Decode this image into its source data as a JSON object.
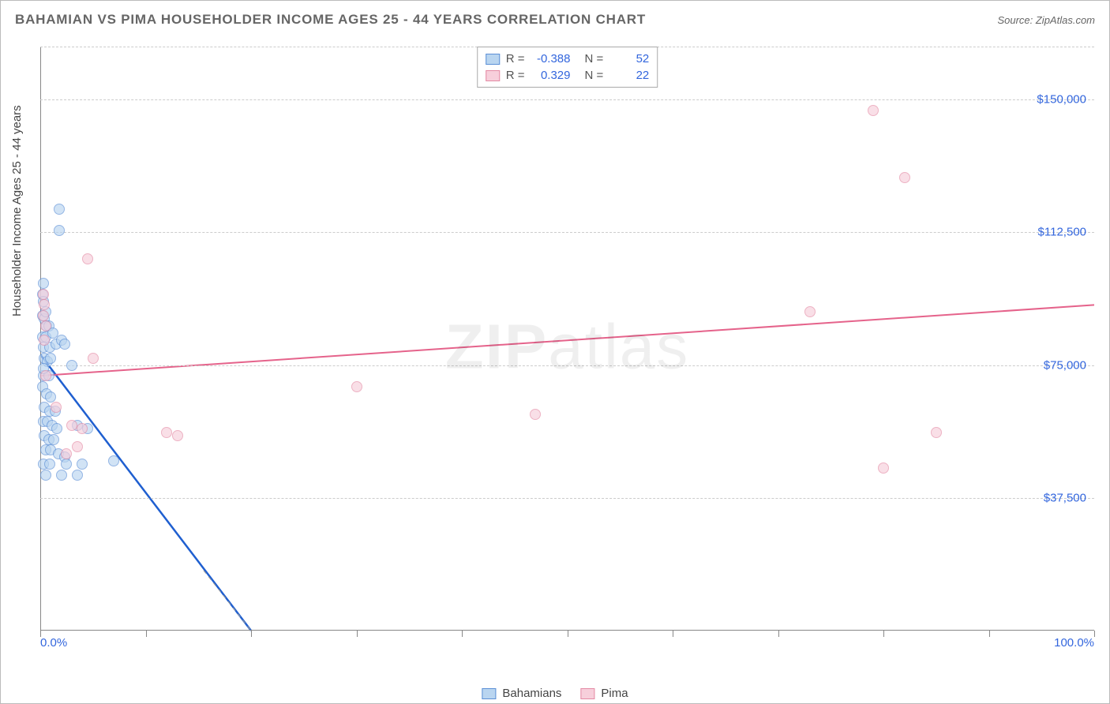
{
  "title": "BAHAMIAN VS PIMA HOUSEHOLDER INCOME AGES 25 - 44 YEARS CORRELATION CHART",
  "source": "Source: ZipAtlas.com",
  "watermark": "ZIPatlas",
  "chart": {
    "type": "scatter",
    "y_axis_label": "Householder Income Ages 25 - 44 years",
    "xlim": [
      0,
      100
    ],
    "ylim": [
      0,
      165000
    ],
    "y_ticks": [
      {
        "v": 37500,
        "label": "$37,500"
      },
      {
        "v": 75000,
        "label": "$75,000"
      },
      {
        "v": 112500,
        "label": "$112,500"
      },
      {
        "v": 150000,
        "label": "$150,000"
      }
    ],
    "x_extent_labels": {
      "min": "0.0%",
      "max": "100.0%"
    },
    "x_tick_positions": [
      0,
      10,
      20,
      30,
      40,
      50,
      60,
      70,
      80,
      90,
      100
    ],
    "grid_color": "#cccccc",
    "background_color": "#ffffff",
    "axis_color": "#888888",
    "title_fontsize": 17,
    "label_fontsize": 15,
    "tick_color": "#3366dd",
    "series": [
      {
        "name": "Bahamians",
        "fill_color": "#b9d5f0",
        "stroke_color": "#5b8fd6",
        "line_color": "#1f5fd0",
        "line_width": 2.5,
        "marker_radius": 7,
        "marker_opacity": 0.65,
        "regression": {
          "R": -0.388,
          "N": 52,
          "x1": 0,
          "y1": 78000,
          "x2": 20,
          "y2": 0
        },
        "regression_extrapolate": {
          "x1": 15.5,
          "y1": 17000,
          "x2": 20,
          "y2": 0
        },
        "points": [
          {
            "x": 0.2,
            "y": 95000
          },
          {
            "x": 0.3,
            "y": 93000
          },
          {
            "x": 0.2,
            "y": 89000
          },
          {
            "x": 0.4,
            "y": 88000
          },
          {
            "x": 0.6,
            "y": 86000
          },
          {
            "x": 0.8,
            "y": 86000
          },
          {
            "x": 0.2,
            "y": 83000
          },
          {
            "x": 0.5,
            "y": 83000
          },
          {
            "x": 1.2,
            "y": 84000
          },
          {
            "x": 0.3,
            "y": 80000
          },
          {
            "x": 0.9,
            "y": 80000
          },
          {
            "x": 1.5,
            "y": 81000
          },
          {
            "x": 2.0,
            "y": 82000
          },
          {
            "x": 2.3,
            "y": 81000
          },
          {
            "x": 0.4,
            "y": 77000
          },
          {
            "x": 0.7,
            "y": 76000
          },
          {
            "x": 1.0,
            "y": 77000
          },
          {
            "x": 3.0,
            "y": 75000
          },
          {
            "x": 0.3,
            "y": 72000
          },
          {
            "x": 0.8,
            "y": 72000
          },
          {
            "x": 0.2,
            "y": 69000
          },
          {
            "x": 0.6,
            "y": 67000
          },
          {
            "x": 1.0,
            "y": 66000
          },
          {
            "x": 0.4,
            "y": 63000
          },
          {
            "x": 0.9,
            "y": 62000
          },
          {
            "x": 1.4,
            "y": 62000
          },
          {
            "x": 0.3,
            "y": 59000
          },
          {
            "x": 0.7,
            "y": 59000
          },
          {
            "x": 1.1,
            "y": 58000
          },
          {
            "x": 1.6,
            "y": 57000
          },
          {
            "x": 3.5,
            "y": 58000
          },
          {
            "x": 4.5,
            "y": 57000
          },
          {
            "x": 0.4,
            "y": 55000
          },
          {
            "x": 0.8,
            "y": 54000
          },
          {
            "x": 1.3,
            "y": 54000
          },
          {
            "x": 0.5,
            "y": 51000
          },
          {
            "x": 1.0,
            "y": 51000
          },
          {
            "x": 1.7,
            "y": 50000
          },
          {
            "x": 2.3,
            "y": 49000
          },
          {
            "x": 0.3,
            "y": 47000
          },
          {
            "x": 0.9,
            "y": 47000
          },
          {
            "x": 2.5,
            "y": 47000
          },
          {
            "x": 4.0,
            "y": 47000
          },
          {
            "x": 7.0,
            "y": 48000
          },
          {
            "x": 0.5,
            "y": 44000
          },
          {
            "x": 2.0,
            "y": 44000
          },
          {
            "x": 3.5,
            "y": 44000
          },
          {
            "x": 1.8,
            "y": 119000
          },
          {
            "x": 1.8,
            "y": 113000
          },
          {
            "x": 0.3,
            "y": 98000
          },
          {
            "x": 0.5,
            "y": 90000
          },
          {
            "x": 0.3,
            "y": 74000
          }
        ]
      },
      {
        "name": "Pima",
        "fill_color": "#f7cfdb",
        "stroke_color": "#e48aa4",
        "line_color": "#e5638b",
        "line_width": 2,
        "marker_radius": 7,
        "marker_opacity": 0.65,
        "regression": {
          "R": 0.329,
          "N": 22,
          "x1": 0,
          "y1": 72000,
          "x2": 100,
          "y2": 92000
        },
        "points": [
          {
            "x": 0.3,
            "y": 95000
          },
          {
            "x": 0.4,
            "y": 92000
          },
          {
            "x": 0.3,
            "y": 89000
          },
          {
            "x": 0.5,
            "y": 86000
          },
          {
            "x": 0.4,
            "y": 82000
          },
          {
            "x": 4.5,
            "y": 105000
          },
          {
            "x": 5.0,
            "y": 77000
          },
          {
            "x": 0.5,
            "y": 72000
          },
          {
            "x": 1.5,
            "y": 63000
          },
          {
            "x": 3.0,
            "y": 58000
          },
          {
            "x": 4.0,
            "y": 57000
          },
          {
            "x": 3.5,
            "y": 52000
          },
          {
            "x": 2.5,
            "y": 50000
          },
          {
            "x": 12.0,
            "y": 56000
          },
          {
            "x": 13.0,
            "y": 55000
          },
          {
            "x": 30.0,
            "y": 69000
          },
          {
            "x": 47.0,
            "y": 61000
          },
          {
            "x": 73.0,
            "y": 90000
          },
          {
            "x": 79.0,
            "y": 147000
          },
          {
            "x": 82.0,
            "y": 128000
          },
          {
            "x": 85.0,
            "y": 56000
          },
          {
            "x": 80.0,
            "y": 46000
          }
        ]
      }
    ]
  },
  "legend_top": {
    "rows": [
      {
        "swatch_fill": "#b9d5f0",
        "swatch_stroke": "#5b8fd6",
        "r_label": "R =",
        "r_val": "-0.388",
        "n_label": "N =",
        "n_val": "52"
      },
      {
        "swatch_fill": "#f7cfdb",
        "swatch_stroke": "#e48aa4",
        "r_label": "R =",
        "r_val": "0.329",
        "n_label": "N =",
        "n_val": "22"
      }
    ]
  },
  "legend_bottom": {
    "items": [
      {
        "swatch_fill": "#b9d5f0",
        "swatch_stroke": "#5b8fd6",
        "label": "Bahamians"
      },
      {
        "swatch_fill": "#f7cfdb",
        "swatch_stroke": "#e48aa4",
        "label": "Pima"
      }
    ]
  }
}
